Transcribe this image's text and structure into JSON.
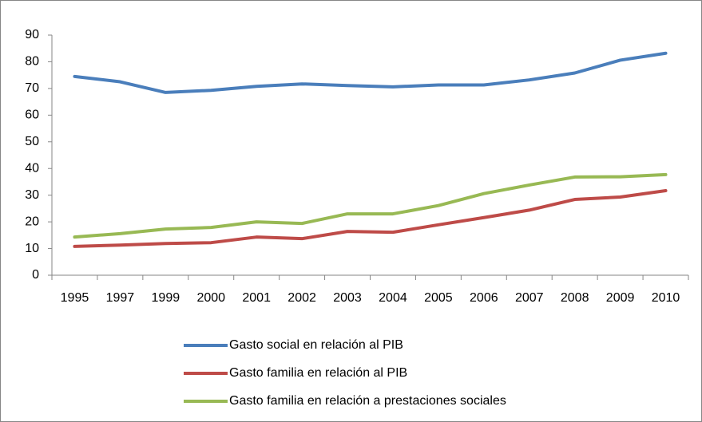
{
  "chart_data": {
    "type": "line",
    "categories": [
      "1995",
      "1997",
      "1999",
      "2000",
      "2001",
      "2002",
      "2003",
      "2004",
      "2005",
      "2006",
      "2007",
      "2008",
      "2009",
      "2010"
    ],
    "series": [
      {
        "name": "Gasto social en relación al PIB",
        "color": "#4a7ebb",
        "values": [
          74.5,
          72.5,
          68.5,
          69.3,
          70.8,
          71.7,
          71.1,
          70.6,
          71.3,
          71.3,
          73.2,
          75.8,
          80.6,
          83.2
        ]
      },
      {
        "name": "Gasto familia en relación al PIB",
        "color": "#be4b48",
        "values": [
          10.8,
          11.3,
          11.9,
          12.2,
          14.3,
          13.7,
          16.4,
          16.1,
          18.9,
          21.6,
          24.4,
          28.4,
          29.3,
          31.7
        ]
      },
      {
        "name": "Gasto familia en relación a prestaciones sociales",
        "color": "#98b954",
        "values": [
          14.3,
          15.6,
          17.3,
          17.9,
          20.0,
          19.4,
          23.0,
          23.0,
          26.1,
          30.6,
          33.8,
          36.8,
          36.9,
          37.7
        ]
      }
    ],
    "ylim": [
      0,
      90
    ],
    "yticks": [
      0,
      10,
      20,
      30,
      40,
      50,
      60,
      70,
      80,
      90
    ],
    "grid": false,
    "legend": "bottom"
  }
}
